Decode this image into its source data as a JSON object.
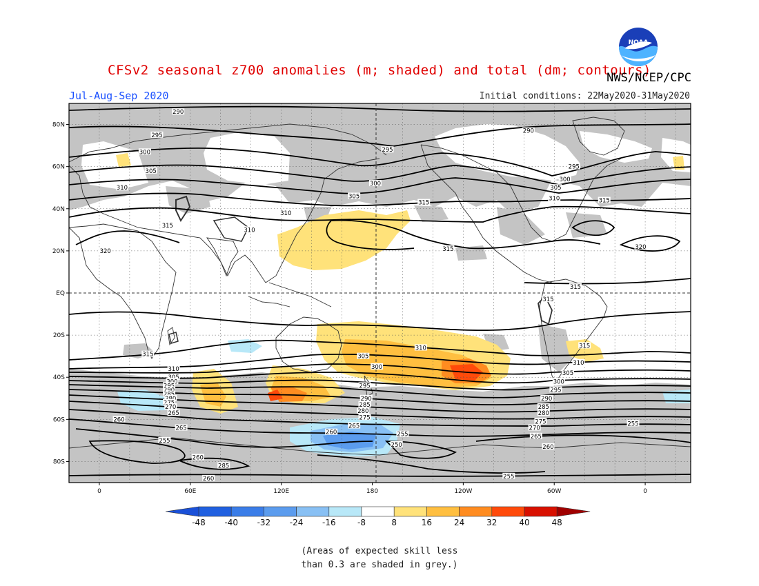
{
  "header": {
    "title": "CFSv2 seasonal z700 anomalies (m; shaded) and total (dm; contours)",
    "season": "Jul-Aug-Sep 2020",
    "initial_conditions": "Initial conditions: 22May2020-31May2020",
    "agency": "NWS/NCEP/CPC",
    "logo_text": "NOAA"
  },
  "axes": {
    "lat_labels": [
      "80N",
      "60N",
      "40N",
      "20N",
      "EQ",
      "20S",
      "40S",
      "60S",
      "80S"
    ],
    "lon_labels": [
      "0",
      "60E",
      "120E",
      "180",
      "120W",
      "60W",
      "0"
    ]
  },
  "colorbar": {
    "labels": [
      "-48",
      "-40",
      "-32",
      "-24",
      "-16",
      "-8",
      "8",
      "16",
      "24",
      "32",
      "40",
      "48"
    ],
    "colors": [
      "#2060e0",
      "#3a7de8",
      "#5b9cee",
      "#88c0f4",
      "#b8e8f8",
      "#ffffff",
      "#ffe27a",
      "#ffbf40",
      "#ff8c20",
      "#ff4a0a",
      "#d81000"
    ]
  },
  "contours": {
    "labels": [
      {
        "text": "290",
        "lon": 52,
        "lat": 86
      },
      {
        "text": "295",
        "lon": 38,
        "lat": 75
      },
      {
        "text": "300",
        "lon": 30,
        "lat": 67
      },
      {
        "text": "305",
        "lon": 34,
        "lat": 58
      },
      {
        "text": "310",
        "lon": 15,
        "lat": 50
      },
      {
        "text": "315",
        "lon": 45,
        "lat": 32
      },
      {
        "text": "320",
        "lon": 4,
        "lat": 20
      },
      {
        "text": "310",
        "lon": 123,
        "lat": 38
      },
      {
        "text": "310",
        "lon": 99,
        "lat": 30
      },
      {
        "text": "305",
        "lon": 168,
        "lat": 46
      },
      {
        "text": "300",
        "lon": 182,
        "lat": 52
      },
      {
        "text": "295",
        "lon": 190,
        "lat": 68
      },
      {
        "text": "290",
        "lon": 283,
        "lat": 77
      },
      {
        "text": "315",
        "lon": 214,
        "lat": 43
      },
      {
        "text": "315",
        "lon": 230,
        "lat": 21
      },
      {
        "text": "295",
        "lon": 313,
        "lat": 60
      },
      {
        "text": "300",
        "lon": 307,
        "lat": 54
      },
      {
        "text": "305",
        "lon": 301,
        "lat": 50
      },
      {
        "text": "310",
        "lon": 300,
        "lat": 45
      },
      {
        "text": "315",
        "lon": 333,
        "lat": 44
      },
      {
        "text": "320",
        "lon": 357,
        "lat": 22
      },
      {
        "text": "315",
        "lon": 314,
        "lat": 3
      },
      {
        "text": "315",
        "lon": 296,
        "lat": -3
      },
      {
        "text": "315",
        "lon": 320,
        "lat": -25
      },
      {
        "text": "310",
        "lon": 316,
        "lat": -33
      },
      {
        "text": "305",
        "lon": 309,
        "lat": -38
      },
      {
        "text": "300",
        "lon": 303,
        "lat": -42
      },
      {
        "text": "295",
        "lon": 301,
        "lat": -46
      },
      {
        "text": "290",
        "lon": 295,
        "lat": -50
      },
      {
        "text": "285",
        "lon": 293,
        "lat": -54
      },
      {
        "text": "280",
        "lon": 293,
        "lat": -57
      },
      {
        "text": "275",
        "lon": 291,
        "lat": -61
      },
      {
        "text": "270",
        "lon": 287,
        "lat": -64
      },
      {
        "text": "265",
        "lon": 288,
        "lat": -68
      },
      {
        "text": "260",
        "lon": 296,
        "lat": -73
      },
      {
        "text": "255",
        "lon": 352,
        "lat": -62
      },
      {
        "text": "255",
        "lon": 270,
        "lat": -87
      },
      {
        "text": "310",
        "lon": 212,
        "lat": -26
      },
      {
        "text": "305",
        "lon": 174,
        "lat": -30
      },
      {
        "text": "300",
        "lon": 183,
        "lat": -35
      },
      {
        "text": "295",
        "lon": 175,
        "lat": -44
      },
      {
        "text": "290",
        "lon": 176,
        "lat": -50
      },
      {
        "text": "285",
        "lon": 175,
        "lat": -53
      },
      {
        "text": "280",
        "lon": 174,
        "lat": -56
      },
      {
        "text": "275",
        "lon": 175,
        "lat": -59
      },
      {
        "text": "265",
        "lon": 168,
        "lat": -63
      },
      {
        "text": "260",
        "lon": 153,
        "lat": -66
      },
      {
        "text": "255",
        "lon": 200,
        "lat": -67
      },
      {
        "text": "250",
        "lon": 196,
        "lat": -72
      },
      {
        "text": "315",
        "lon": 32,
        "lat": -29
      },
      {
        "text": "310",
        "lon": 49,
        "lat": -36
      },
      {
        "text": "305",
        "lon": 49,
        "lat": -40
      },
      {
        "text": "300",
        "lon": 48,
        "lat": -42
      },
      {
        "text": "295",
        "lon": 46,
        "lat": -44
      },
      {
        "text": "290",
        "lon": 46,
        "lat": -46
      },
      {
        "text": "285",
        "lon": 46,
        "lat": -48
      },
      {
        "text": "280",
        "lon": 47,
        "lat": -50
      },
      {
        "text": "275",
        "lon": 46,
        "lat": -52
      },
      {
        "text": "270",
        "lon": 47,
        "lat": -54
      },
      {
        "text": "265",
        "lon": 49,
        "lat": -57
      },
      {
        "text": "260",
        "lon": 13,
        "lat": -60
      },
      {
        "text": "265",
        "lon": 54,
        "lat": -64
      },
      {
        "text": "255",
        "lon": 43,
        "lat": -70
      },
      {
        "text": "260",
        "lon": 65,
        "lat": -78
      },
      {
        "text": "285",
        "lon": 82,
        "lat": -82
      },
      {
        "text": "260",
        "lon": 72,
        "lat": -88
      }
    ]
  },
  "footnote": {
    "line1": "(Areas of expected skill less",
    "line2": "than 0.3 are shaded in grey.)"
  }
}
